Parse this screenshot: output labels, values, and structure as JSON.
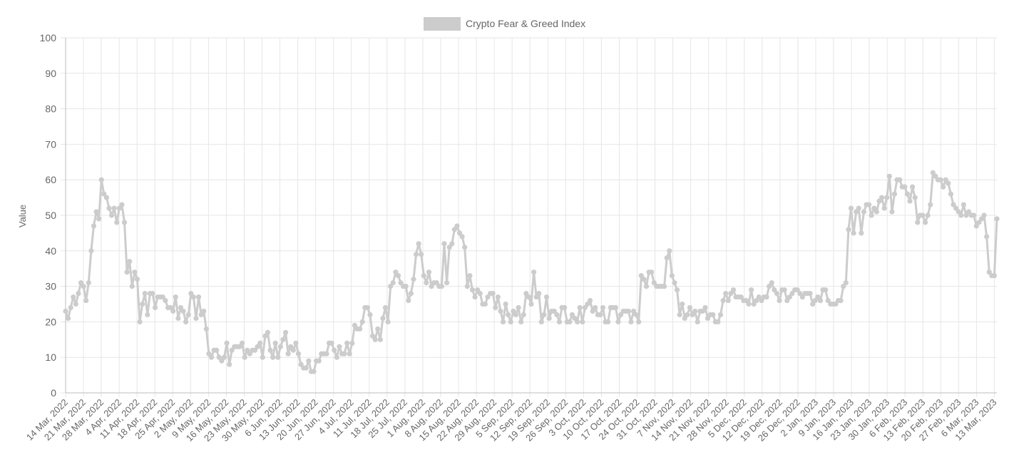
{
  "chart_data": {
    "type": "line",
    "legend": {
      "label": "Crypto Fear & Greed Index",
      "position": "top",
      "swatch_color": "#cccccc"
    },
    "ylabel": "Value",
    "xlabel": "",
    "ylim": [
      0,
      100
    ],
    "yticks": [
      0,
      10,
      20,
      30,
      40,
      50,
      60,
      70,
      80,
      90,
      100
    ],
    "grid": true,
    "line_color": "#cccccc",
    "x_start": "2022-03-14",
    "x_end": "2023-03-14",
    "xtick_labels": [
      "14 Mar, 2022",
      "21 Mar, 2022",
      "28 Mar, 2022",
      "4 Apr, 2022",
      "11 Apr, 2022",
      "18 Apr, 2022",
      "25 Apr, 2022",
      "2 May, 2022",
      "9 May, 2022",
      "16 May, 2022",
      "23 May, 2022",
      "30 May, 2022",
      "6 Jun, 2022",
      "13 Jun, 2022",
      "20 Jun, 2022",
      "27 Jun, 2022",
      "4 Jul, 2022",
      "11 Jul, 2022",
      "18 Jul, 2022",
      "25 Jul, 2022",
      "1 Aug, 2022",
      "8 Aug, 2022",
      "15 Aug, 2022",
      "22 Aug, 2022",
      "29 Aug, 2022",
      "5 Sep, 2022",
      "12 Sep, 2022",
      "19 Sep, 2022",
      "26 Sep, 2022",
      "3 Oct, 2022",
      "10 Oct, 2022",
      "17 Oct, 2022",
      "24 Oct, 2022",
      "31 Oct, 2022",
      "7 Nov, 2022",
      "14 Nov, 2022",
      "21 Nov, 2022",
      "28 Nov, 2022",
      "5 Dec, 2022",
      "12 Dec, 2022",
      "19 Dec, 2022",
      "26 Dec, 2022",
      "2 Jan, 2023",
      "9 Jan, 2023",
      "16 Jan, 2023",
      "23 Jan, 2023",
      "30 Jan, 2023",
      "6 Feb, 2023",
      "13 Feb, 2023",
      "20 Feb, 2023",
      "27 Feb, 2023",
      "6 Mar, 2023",
      "13 Mar, 2023"
    ],
    "values": [
      23,
      21,
      24,
      27,
      25,
      28,
      31,
      30,
      26,
      31,
      40,
      47,
      51,
      49,
      60,
      56,
      55,
      52,
      50,
      52,
      48,
      52,
      53,
      48,
      34,
      37,
      30,
      34,
      32,
      20,
      25,
      28,
      22,
      28,
      28,
      24,
      27,
      27,
      27,
      26,
      24,
      24,
      23,
      27,
      21,
      24,
      23,
      20,
      22,
      28,
      27,
      21,
      27,
      22,
      23,
      18,
      11,
      10,
      12,
      12,
      10,
      9,
      10,
      14,
      8,
      12,
      13,
      13,
      13,
      14,
      10,
      12,
      11,
      12,
      12,
      13,
      14,
      10,
      16,
      17,
      12,
      10,
      14,
      10,
      13,
      15,
      17,
      11,
      13,
      12,
      14,
      11,
      8,
      7,
      7,
      9,
      6,
      6,
      9,
      9,
      11,
      11,
      11,
      14,
      14,
      12,
      10,
      13,
      11,
      11,
      14,
      11,
      14,
      19,
      18,
      18,
      20,
      24,
      24,
      22,
      16,
      15,
      18,
      15,
      21,
      24,
      20,
      30,
      31,
      34,
      33,
      31,
      30,
      30,
      26,
      28,
      32,
      39,
      42,
      39,
      33,
      31,
      34,
      30,
      31,
      31,
      30,
      30,
      42,
      31,
      41,
      42,
      46,
      47,
      45,
      44,
      41,
      30,
      33,
      29,
      27,
      29,
      28,
      25,
      25,
      27,
      28,
      28,
      24,
      27,
      23,
      20,
      25,
      22,
      20,
      23,
      22,
      24,
      20,
      22,
      28,
      27,
      25,
      34,
      27,
      28,
      20,
      22,
      27,
      21,
      23,
      23,
      22,
      20,
      24,
      24,
      20,
      20,
      22,
      21,
      20,
      24,
      20,
      24,
      25,
      26,
      23,
      24,
      22,
      22,
      24,
      20,
      20,
      24,
      24,
      24,
      20,
      22,
      23,
      23,
      23,
      20,
      23,
      22,
      20,
      33,
      32,
      30,
      34,
      34,
      31,
      30,
      30,
      30,
      30,
      38,
      40,
      33,
      31,
      29,
      22,
      25,
      21,
      22,
      24,
      22,
      23,
      20,
      23,
      23,
      24,
      21,
      22,
      22,
      20,
      20,
      22,
      26,
      28,
      26,
      28,
      29,
      27,
      27,
      27,
      26,
      26,
      25,
      29,
      25,
      26,
      27,
      26,
      27,
      27,
      30,
      31,
      29,
      28,
      26,
      29,
      29,
      26,
      27,
      28,
      29,
      29,
      28,
      27,
      28,
      28,
      28,
      25,
      26,
      27,
      26,
      29,
      29,
      26,
      25,
      25,
      25,
      26,
      26,
      30,
      31,
      46,
      52,
      45,
      51,
      52,
      45,
      51,
      53,
      53,
      50,
      52,
      51,
      54,
      55,
      52,
      55,
      61,
      51,
      56,
      60,
      60,
      58,
      58,
      56,
      54,
      58,
      55,
      48,
      50,
      50,
      48,
      50,
      53,
      62,
      61,
      60,
      60,
      58,
      60,
      59,
      56,
      53,
      52,
      51,
      50,
      53,
      50,
      51,
      50,
      50,
      47,
      48,
      49,
      50,
      44,
      34,
      33,
      33,
      49
    ]
  }
}
